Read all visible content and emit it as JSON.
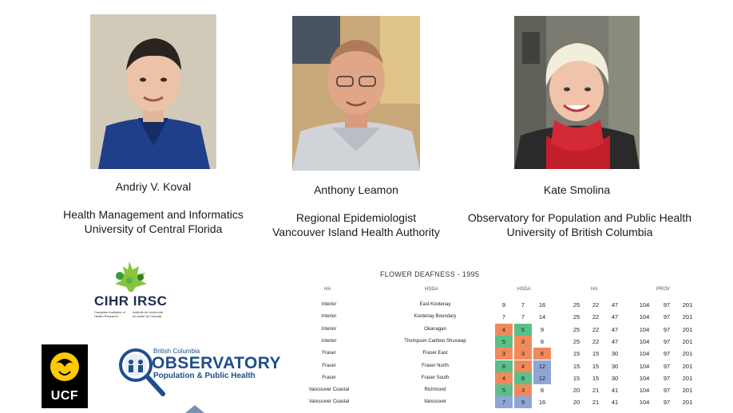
{
  "people": [
    {
      "name": "Andriy V. Koval",
      "affiliation": [
        "Health Management and Informatics",
        "University of Central Florida"
      ]
    },
    {
      "name": "Anthony Leamon",
      "affiliation": [
        "Regional Epidemiologist",
        "Vancouver Island Health Authority"
      ]
    },
    {
      "name": "Kate Smolina",
      "affiliation": [
        "Observatory for Population and Public Health",
        "University of British Columbia"
      ]
    }
  ],
  "logos": {
    "cihr": {
      "main": "CIHR IRSC",
      "en": [
        "Canadian Institutes of",
        "Health Research"
      ],
      "fr": [
        "Instituts de recherche",
        "en santé du Canada"
      ]
    },
    "ucf": {
      "text": "UCF"
    },
    "observatory": {
      "province": "British Columbia",
      "title": "OBSERVATORY",
      "subtitle": "Population & Public Health"
    }
  },
  "table": {
    "title": "FLOWER DEAFNESS - 1995",
    "headers": [
      "HA",
      "HSDA",
      "HSDA",
      "HA",
      "PROV"
    ],
    "colors": {
      "orange": "#f08a5d",
      "green": "#5bbf8a",
      "blue": "#8fa6d4",
      "blank": "#ffffff"
    },
    "rows": [
      {
        "ha": "Interior",
        "hsda": "East Kootenay",
        "c": [
          "9",
          "7",
          "16"
        ],
        "fill": [
          "blank",
          "blank",
          "blank"
        ],
        "ha_vals": [
          "25",
          "22",
          "47"
        ],
        "prov": [
          "104",
          "97",
          "201"
        ]
      },
      {
        "ha": "Interior",
        "hsda": "Kootenay Boundary",
        "c": [
          "7",
          "7",
          "14"
        ],
        "fill": [
          "blank",
          "blank",
          "blank"
        ],
        "ha_vals": [
          "25",
          "22",
          "47"
        ],
        "prov": [
          "104",
          "97",
          "201"
        ]
      },
      {
        "ha": "Interior",
        "hsda": "Okanagan",
        "c": [
          "4",
          "5",
          "9"
        ],
        "fill": [
          "orange",
          "green",
          "blank"
        ],
        "ha_vals": [
          "25",
          "22",
          "47"
        ],
        "prov": [
          "104",
          "97",
          "201"
        ]
      },
      {
        "ha": "Interior",
        "hsda": "Thompson Cariboo Shuswap",
        "c": [
          "5",
          "3",
          "8"
        ],
        "fill": [
          "green",
          "orange",
          "blank"
        ],
        "ha_vals": [
          "25",
          "22",
          "47"
        ],
        "prov": [
          "104",
          "97",
          "201"
        ]
      },
      {
        "ha": "Fraser",
        "hsda": "Fraser East",
        "c": [
          "3",
          "3",
          "6"
        ],
        "fill": [
          "orange",
          "orange",
          "orange"
        ],
        "ha_vals": [
          "15",
          "15",
          "30"
        ],
        "prov": [
          "104",
          "97",
          "201"
        ]
      },
      {
        "ha": "Fraser",
        "hsda": "Fraser North",
        "c": [
          "8",
          "4",
          "12"
        ],
        "fill": [
          "green",
          "orange",
          "blue"
        ],
        "ha_vals": [
          "15",
          "15",
          "30"
        ],
        "prov": [
          "104",
          "97",
          "201"
        ]
      },
      {
        "ha": "Fraser",
        "hsda": "Fraser South",
        "c": [
          "4",
          "8",
          "12"
        ],
        "fill": [
          "orange",
          "green",
          "blue"
        ],
        "ha_vals": [
          "15",
          "15",
          "30"
        ],
        "prov": [
          "104",
          "97",
          "201"
        ]
      },
      {
        "ha": "Vancouver Coastal",
        "hsda": "Richmond",
        "c": [
          "5",
          "3",
          "8"
        ],
        "fill": [
          "green",
          "orange",
          "blank"
        ],
        "ha_vals": [
          "20",
          "21",
          "41"
        ],
        "prov": [
          "104",
          "97",
          "201"
        ]
      },
      {
        "ha": "Vancouver Coastal",
        "hsda": "Vancouver",
        "c": [
          "7",
          "9",
          "16"
        ],
        "fill": [
          "blue",
          "blue",
          "blank"
        ],
        "ha_vals": [
          "20",
          "21",
          "41"
        ],
        "prov": [
          "104",
          "97",
          "201"
        ]
      }
    ]
  }
}
